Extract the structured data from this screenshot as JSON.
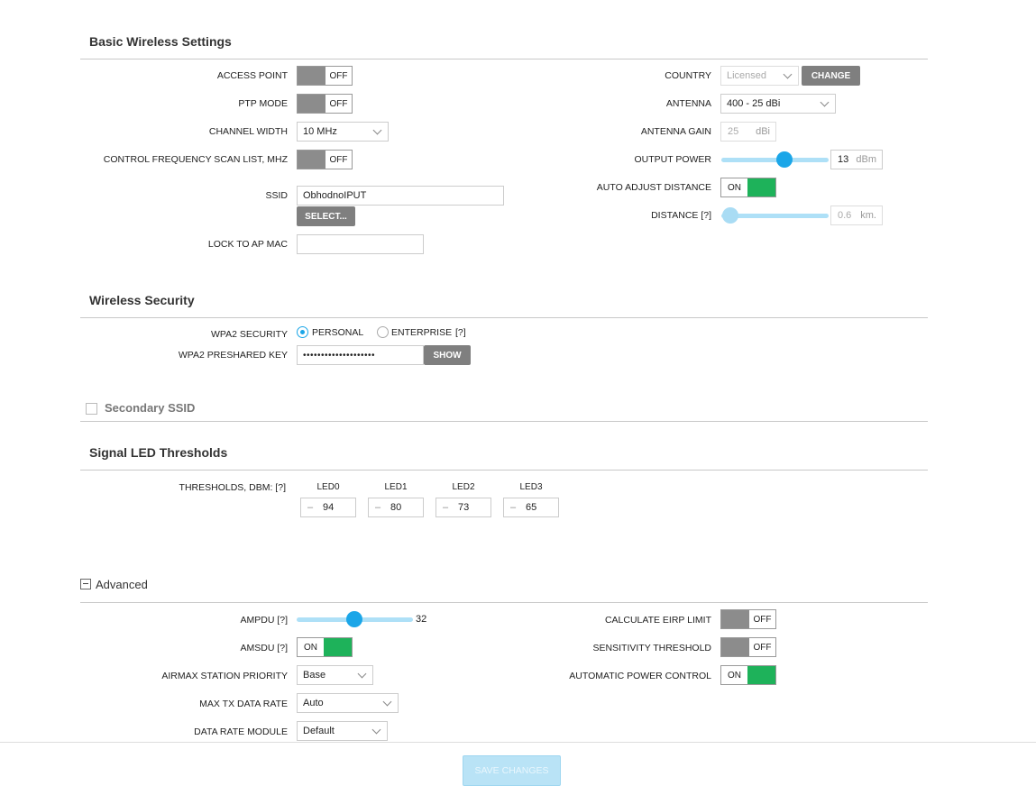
{
  "basic": {
    "title": "Basic Wireless Settings",
    "access_point": {
      "label": "ACCESS POINT",
      "state": "OFF"
    },
    "ptp_mode": {
      "label": "PTP MODE",
      "state": "OFF"
    },
    "channel_width": {
      "label": "CHANNEL WIDTH",
      "value": "10 MHz"
    },
    "scan_list": {
      "label": "CONTROL FREQUENCY SCAN LIST, MHz",
      "state": "OFF"
    },
    "ssid": {
      "label": "SSID",
      "value": "ObhodnoIPUT",
      "select_label": "SELECT..."
    },
    "lock_ap_mac": {
      "label": "LOCK TO AP MAC",
      "value": ""
    },
    "country": {
      "label": "COUNTRY",
      "value": "Licensed",
      "change_label": "CHANGE"
    },
    "antenna": {
      "label": "ANTENNA",
      "value": "400 - 25 dBi"
    },
    "antenna_gain": {
      "label": "ANTENNA GAIN",
      "value": "25",
      "unit": "dBi"
    },
    "output_power": {
      "label": "OUTPUT POWER",
      "value": "13",
      "unit": "dBm"
    },
    "auto_adjust": {
      "label": "AUTO ADJUST DISTANCE",
      "state": "ON"
    },
    "distance": {
      "label": "DISTANCE [?]",
      "value": "0.6",
      "unit": "km."
    }
  },
  "security": {
    "title": "Wireless Security",
    "wpa2_label": "WPA2 SECURITY",
    "personal_label": "PERSONAL",
    "enterprise_label": "ENTERPRISE",
    "help": "[?]",
    "key_label": "WPA2 PRESHARED KEY",
    "key_value": "••••••••••••••••••••",
    "show_label": "SHOW"
  },
  "secondary": {
    "title": "Secondary SSID"
  },
  "led": {
    "title": "Signal LED Thresholds",
    "label": "THRESHOLDS, dBm: [?]",
    "minus": "–",
    "items": [
      {
        "name": "LED0",
        "value": "94"
      },
      {
        "name": "LED1",
        "value": "80"
      },
      {
        "name": "LED2",
        "value": "73"
      },
      {
        "name": "LED3",
        "value": "65"
      }
    ]
  },
  "advanced": {
    "title": "Advanced",
    "ampdu": {
      "label": "AMPDU [?]",
      "value": "32"
    },
    "amsdu": {
      "label": "AMSDU [?]",
      "state": "ON"
    },
    "airmax_priority": {
      "label": "AIRMAX STATION PRIORITY",
      "value": "Base"
    },
    "max_tx": {
      "label": "MAX TX DATA RATE",
      "value": "Auto"
    },
    "data_rate_module": {
      "label": "DATA RATE MODULE",
      "value": "Default"
    },
    "eirp": {
      "label": "CALCULATE EIRP LIMIT",
      "state": "OFF"
    },
    "sensitivity": {
      "label": "SENSITIVITY THRESHOLD",
      "state": "OFF"
    },
    "apc": {
      "label": "AUTOMATIC POWER CONTROL",
      "state": "ON"
    }
  },
  "footer": {
    "save_label": "SAVE CHANGES"
  },
  "colors": {
    "accent": "#1ba6e8",
    "on": "#1eb25a",
    "off": "#8c8c8c"
  }
}
